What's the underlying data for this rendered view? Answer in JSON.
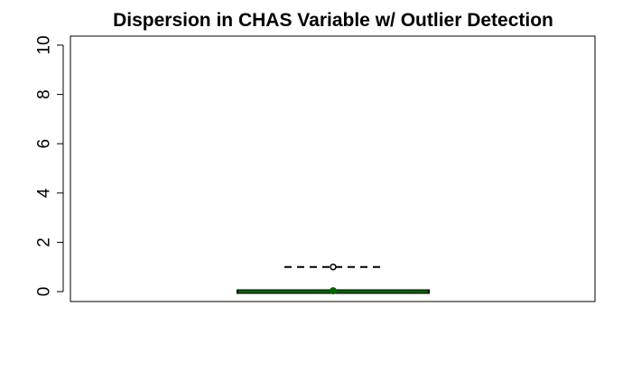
{
  "chart_data": {
    "type": "boxplot",
    "title": "Dispersion in CHAS Variable w/ Outlier Detection",
    "xlabel": "",
    "ylabel": "",
    "ylim": [
      0,
      10
    ],
    "yticks": [
      0,
      2,
      4,
      6,
      8,
      10
    ],
    "box": {
      "min": 0,
      "q1": 0,
      "median": 0,
      "q3": 0,
      "max": 0,
      "outliers": [
        1
      ],
      "color": "#006400",
      "border": "#000000"
    },
    "mean": {
      "value": 0.07,
      "color": "#006400"
    },
    "reference_line": {
      "value": 1,
      "style": "dashed",
      "color": "#000000"
    },
    "grid": false,
    "legend": "none"
  }
}
